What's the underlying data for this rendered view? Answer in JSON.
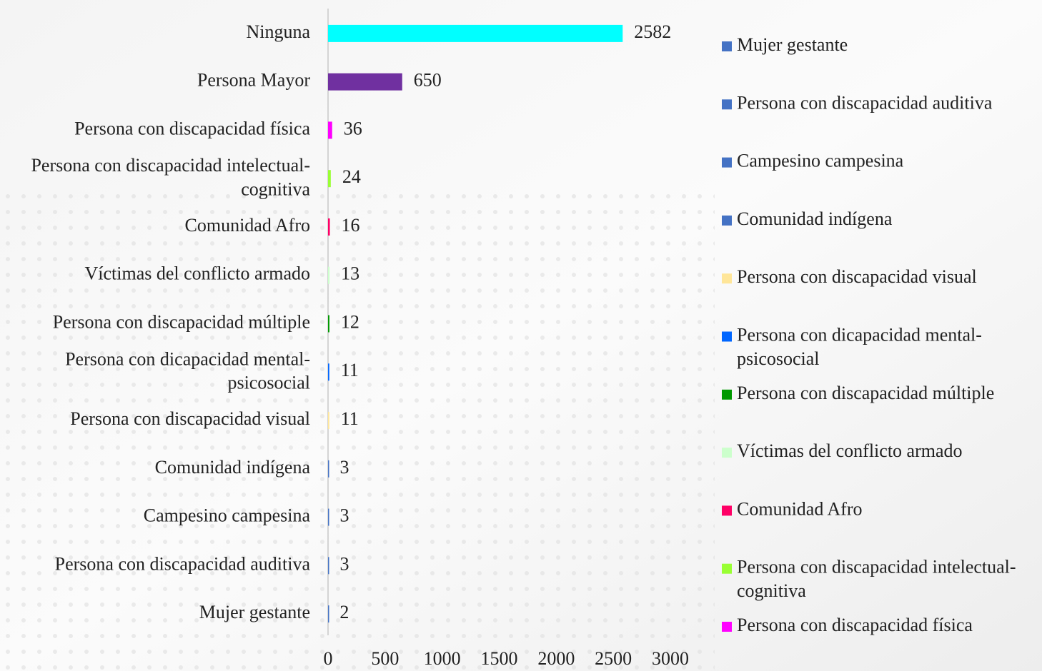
{
  "chart_data": {
    "type": "bar",
    "orientation": "horizontal",
    "categories": [
      "Ninguna",
      "Persona Mayor",
      "Persona con discapacidad física",
      "Persona con discapacidad intelectual-cognitiva",
      "Comunidad Afro",
      "Víctimas del conflicto armado",
      "Persona con discapacidad múltiple",
      "Persona con dicapacidad mental-psicosocial",
      "Persona con discapacidad visual",
      "Comunidad indígena",
      "Campesino campesina",
      "Persona con discapacidad auditiva",
      "Mujer gestante"
    ],
    "values": [
      2582,
      650,
      36,
      24,
      16,
      13,
      12,
      11,
      11,
      3,
      3,
      3,
      2
    ],
    "colors": [
      "#00ffff",
      "#7030a0",
      "#ff00ff",
      "#99ff33",
      "#ff0066",
      "#ccffcc",
      "#009900",
      "#0066ff",
      "#ffe699",
      "#4472c4",
      "#4472c4",
      "#4472c4",
      "#4472c4"
    ],
    "xlim": [
      0,
      3000
    ],
    "xticks": [
      0,
      500,
      1000,
      1500,
      2000,
      2500,
      3000
    ],
    "grid": false,
    "legend": "right"
  }
}
